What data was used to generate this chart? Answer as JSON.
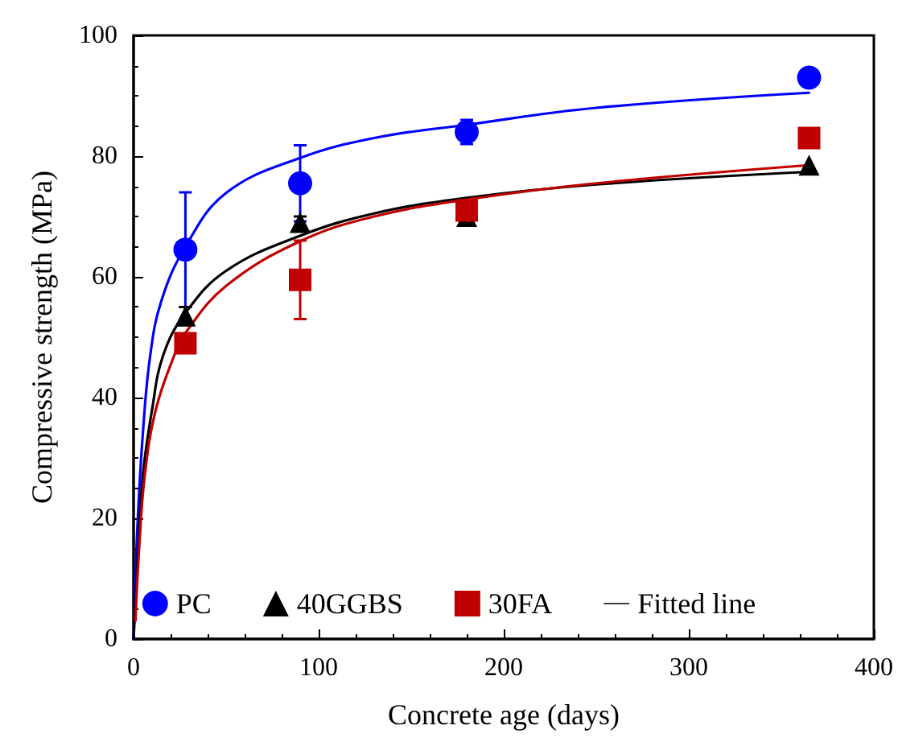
{
  "chart_data": {
    "type": "scatter",
    "xlabel": "Concrete age (days)",
    "ylabel": "Compressive strength (MPa)",
    "xlim": [
      0,
      400
    ],
    "xticks": [
      0,
      100,
      200,
      300,
      400
    ],
    "ylim": [
      0,
      100
    ],
    "yticks": [
      0,
      20,
      40,
      60,
      80,
      100
    ],
    "grid": false,
    "legend": "bottom",
    "series": [
      {
        "name": "PC",
        "marker": "circle",
        "color": "#0000ff",
        "x": [
          28,
          90,
          180,
          365
        ],
        "values": [
          64.5,
          75.5,
          84,
          93
        ],
        "errors": [
          9.5,
          6.3,
          2,
          null
        ]
      },
      {
        "name": "40GGBS",
        "marker": "triangle",
        "color": "#000000",
        "x": [
          28,
          90,
          180,
          365
        ],
        "values": [
          53.5,
          69,
          70,
          78.5
        ],
        "errors": [
          1.5,
          1,
          1,
          null
        ]
      },
      {
        "name": "30FA",
        "marker": "square",
        "color": "#c00000",
        "x": [
          28,
          90,
          180,
          365
        ],
        "values": [
          49,
          59.5,
          71,
          83
        ],
        "errors": [
          null,
          6.5,
          1,
          null
        ]
      },
      {
        "type": "line",
        "marker": "none",
        "color": "#0000ff",
        "x": [
          0,
          2,
          5,
          9,
          15,
          28,
          50,
          90,
          130,
          180,
          250,
          365
        ],
        "values": [
          0,
          18,
          34,
          47,
          56,
          65,
          73.9,
          79.7,
          83,
          85.2,
          88,
          90.5
        ]
      },
      {
        "name": "Fitted line",
        "type": "line",
        "marker": "none",
        "color": "#000000",
        "x": [
          0,
          2,
          5,
          10,
          16,
          28,
          50,
          90,
          130,
          180,
          250,
          365
        ],
        "values": [
          0,
          12,
          27,
          38,
          47,
          54,
          61,
          66.8,
          70.5,
          73.1,
          75.3,
          77.4
        ]
      },
      {
        "type": "line",
        "marker": "none",
        "color": "#c00000",
        "x": [
          1,
          3,
          6,
          12,
          22,
          28,
          50,
          90,
          130,
          180,
          250,
          365
        ],
        "values": [
          3,
          15,
          27,
          38,
          47,
          50.7,
          58.5,
          65.9,
          70,
          72.8,
          75.5,
          78.5
        ]
      }
    ]
  }
}
